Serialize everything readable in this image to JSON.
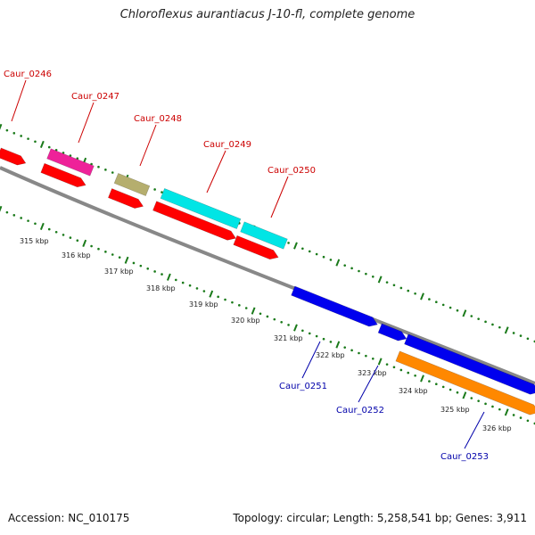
{
  "title": "Chloroflexus aurantiacus J-10-fl, complete genome",
  "footer": {
    "accession": "Accession: NC_010175",
    "summary": "Topology: circular; Length: 5,258,541 bp; Genes: 3,911"
  },
  "colors": {
    "backbone": "#888888",
    "ticks": "#1a7a1a",
    "forward_label": "#cc0000",
    "reverse_label": "#0000aa",
    "cds": "#ff0000",
    "magenta": "#ee2299",
    "olive": "#b5ae6e",
    "cyan": "#00e5e5",
    "blue": "#0000ee",
    "orange": "#ff8800"
  },
  "scale_labels": [
    "315 kbp",
    "316 kbp",
    "317 kbp",
    "318 kbp",
    "319 kbp",
    "320 kbp",
    "321 kbp",
    "322 kbp",
    "323 kbp",
    "324 kbp",
    "325 kbp",
    "326 kbp"
  ],
  "gene_labels": {
    "forward": [
      "Caur_0246",
      "Caur_0247",
      "Caur_0248",
      "Caur_0249",
      "Caur_0250"
    ],
    "reverse": [
      "Caur_0251",
      "Caur_0252",
      "Caur_0253"
    ]
  }
}
